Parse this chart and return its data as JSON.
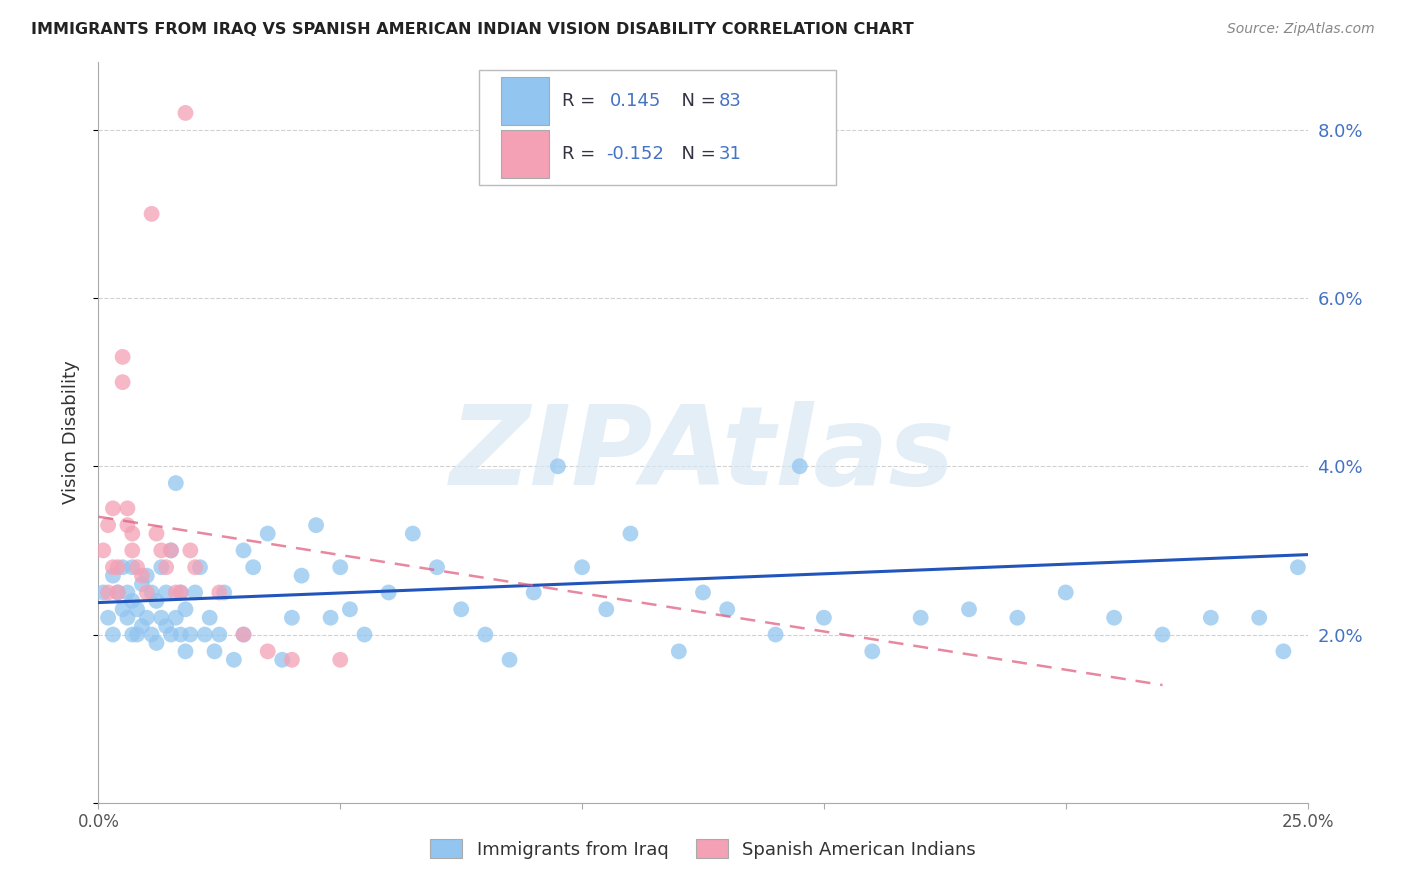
{
  "title": "IMMIGRANTS FROM IRAQ VS SPANISH AMERICAN INDIAN VISION DISABILITY CORRELATION CHART",
  "source": "Source: ZipAtlas.com",
  "ylabel": "Vision Disability",
  "legend_label1": "Immigrants from Iraq",
  "legend_label2": "Spanish American Indians",
  "r1": 0.145,
  "n1": 83,
  "r2": -0.152,
  "n2": 31,
  "xlim": [
    0.0,
    0.25
  ],
  "ylim": [
    0.0,
    0.088
  ],
  "xticks": [
    0.0,
    0.05,
    0.1,
    0.15,
    0.2,
    0.25
  ],
  "yticks": [
    0.0,
    0.02,
    0.04,
    0.06,
    0.08
  ],
  "color_blue": "#92C5F0",
  "color_pink": "#F4A0B5",
  "trend_blue": "#2255BB",
  "trend_pink": "#E06080",
  "blue_x": [
    0.001,
    0.002,
    0.003,
    0.003,
    0.004,
    0.005,
    0.005,
    0.006,
    0.006,
    0.007,
    0.007,
    0.007,
    0.008,
    0.008,
    0.009,
    0.009,
    0.01,
    0.01,
    0.011,
    0.011,
    0.012,
    0.012,
    0.013,
    0.013,
    0.014,
    0.014,
    0.015,
    0.015,
    0.016,
    0.016,
    0.017,
    0.017,
    0.018,
    0.018,
    0.019,
    0.02,
    0.021,
    0.022,
    0.023,
    0.024,
    0.025,
    0.026,
    0.028,
    0.03,
    0.03,
    0.032,
    0.035,
    0.038,
    0.04,
    0.042,
    0.045,
    0.048,
    0.05,
    0.052,
    0.055,
    0.06,
    0.065,
    0.07,
    0.075,
    0.08,
    0.085,
    0.09,
    0.095,
    0.1,
    0.105,
    0.11,
    0.12,
    0.125,
    0.13,
    0.14,
    0.145,
    0.15,
    0.16,
    0.17,
    0.18,
    0.19,
    0.2,
    0.21,
    0.22,
    0.23,
    0.24,
    0.245,
    0.248
  ],
  "blue_y": [
    0.025,
    0.022,
    0.02,
    0.027,
    0.025,
    0.023,
    0.028,
    0.022,
    0.025,
    0.02,
    0.028,
    0.024,
    0.02,
    0.023,
    0.021,
    0.026,
    0.022,
    0.027,
    0.02,
    0.025,
    0.019,
    0.024,
    0.022,
    0.028,
    0.021,
    0.025,
    0.02,
    0.03,
    0.022,
    0.038,
    0.02,
    0.025,
    0.018,
    0.023,
    0.02,
    0.025,
    0.028,
    0.02,
    0.022,
    0.018,
    0.02,
    0.025,
    0.017,
    0.02,
    0.03,
    0.028,
    0.032,
    0.017,
    0.022,
    0.027,
    0.033,
    0.022,
    0.028,
    0.023,
    0.02,
    0.025,
    0.032,
    0.028,
    0.023,
    0.02,
    0.017,
    0.025,
    0.04,
    0.028,
    0.023,
    0.032,
    0.018,
    0.025,
    0.023,
    0.02,
    0.04,
    0.022,
    0.018,
    0.022,
    0.023,
    0.022,
    0.025,
    0.022,
    0.02,
    0.022,
    0.022,
    0.018,
    0.028
  ],
  "pink_x": [
    0.001,
    0.002,
    0.002,
    0.003,
    0.003,
    0.004,
    0.004,
    0.005,
    0.005,
    0.006,
    0.006,
    0.007,
    0.007,
    0.008,
    0.009,
    0.01,
    0.011,
    0.012,
    0.013,
    0.014,
    0.015,
    0.016,
    0.017,
    0.018,
    0.019,
    0.02,
    0.025,
    0.03,
    0.035,
    0.04,
    0.05
  ],
  "pink_y": [
    0.03,
    0.025,
    0.033,
    0.028,
    0.035,
    0.025,
    0.028,
    0.05,
    0.053,
    0.033,
    0.035,
    0.032,
    0.03,
    0.028,
    0.027,
    0.025,
    0.07,
    0.032,
    0.03,
    0.028,
    0.03,
    0.025,
    0.025,
    0.082,
    0.03,
    0.028,
    0.025,
    0.02,
    0.018,
    0.017,
    0.017
  ],
  "watermark": "ZIPAtlas",
  "background_color": "#FFFFFF",
  "grid_color": "#CCCCCC",
  "label_color_blue": "#4472C4",
  "label_color_dark": "#333344"
}
